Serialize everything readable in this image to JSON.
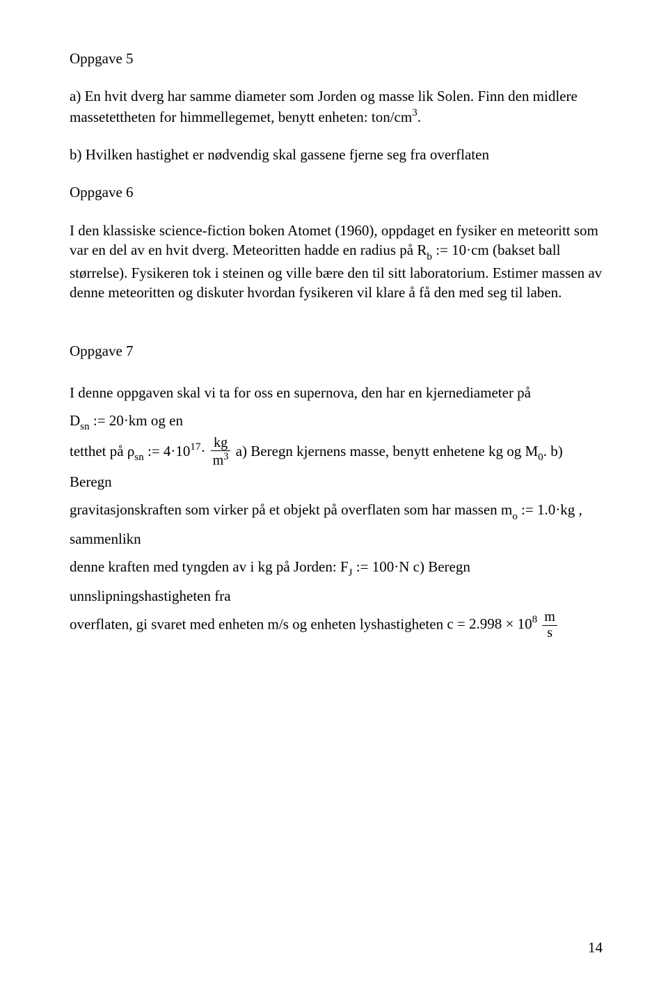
{
  "colors": {
    "text": "#000000",
    "background": "#ffffff"
  },
  "typography": {
    "body_family": "Times New Roman",
    "body_size_pt": 16,
    "math_family": "Times New Roman"
  },
  "page_number": "14",
  "opp5": {
    "title": "Oppgave 5",
    "a_pre": "a) En hvit dverg har samme diameter som Jorden og masse lik Solen. Finn den midlere massetettheten for himmellegemet, benytt enheten: ton/cm",
    "a_exp": "3",
    "a_post": ".",
    "b": "b) Hvilken hastighet er nødvendig skal gassene fjerne seg fra overflaten"
  },
  "opp6": {
    "title": "Oppgave 6",
    "text_pre": "I den klassiske science-fiction boken Atomet (1960), oppdaget en fysiker en meteoritt som var en del av en hvit dverg. Meteoritten hadde en radius på ",
    "math_rb_sym": "R",
    "math_rb_sub": "b",
    "math_rb_assign": " := 10·cm",
    "text_mid": " (bakset ball størrelse). Fysikeren tok i steinen og ville bære den til sitt laboratorium. Estimer massen av denne meteoritten og diskuter hvordan fysikeren vil klare å få den med seg til laben."
  },
  "opp7": {
    "title": "Oppgave 7",
    "l1_pre": "I denne oppgaven skal vi ta for oss en supernova, den har en kjernediameter på ",
    "dsn_sym": "D",
    "dsn_sub": "sn",
    "dsn_assign": " := 20·km",
    "l1_post": " og en",
    "l2_pre": "tetthet på ",
    "rho_sym": "ρ",
    "rho_sub": "sn",
    "rho_assign_pre": " := 4·10",
    "rho_exp": "17",
    "rho_dot": "·",
    "frac_kg_num": "kg",
    "frac_kg_den_base": "m",
    "frac_kg_den_exp": "3",
    "l2_mid": " a) Beregn kjernens masse, benytt enhetene kg og M",
    "m0_sub": "0",
    "l2_post": ". b) Beregn",
    "l3_pre": "gravitasjonskraften som virker på et objekt på overflaten som har massen ",
    "mo_sym": "m",
    "mo_sub": "o",
    "mo_assign": " := 1.0·kg",
    "l3_post": " , sammenlikn",
    "l4_pre": "denne kraften med tyngden av i kg på Jorden: ",
    "fj_sym": "F",
    "fj_sub": "J",
    "fj_assign": " := 100·N",
    "l4_post": " c) Beregn unnslipningshastigheten fra",
    "l5_pre": "overflaten, gi svaret med enheten m/s og enheten lyshastigheten ",
    "c_sym": "c",
    "c_eq": " = 2.998 × 10",
    "c_exp": "8",
    "frac_ms_num": "m",
    "frac_ms_den": "s"
  }
}
